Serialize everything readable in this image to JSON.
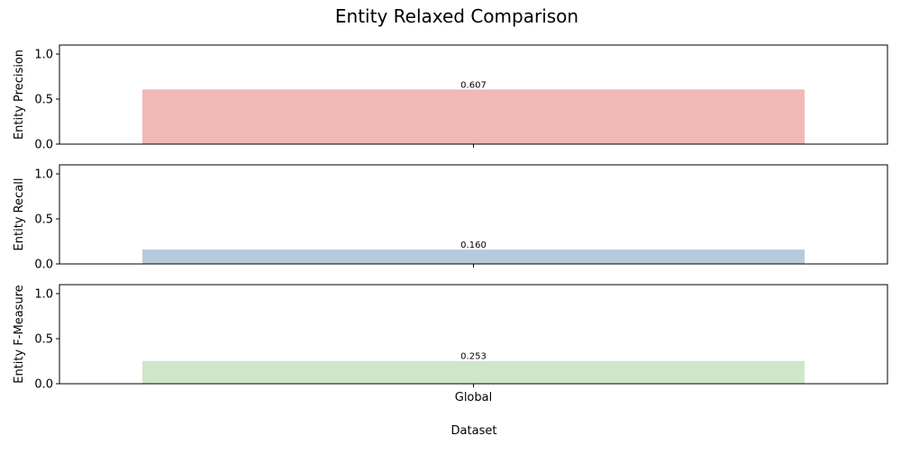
{
  "chart_data": {
    "type": "bar",
    "title": "Entity Relaxed Comparison",
    "xlabel": "Dataset",
    "categories": [
      "Global"
    ],
    "panels": [
      {
        "ylabel": "Entity Precision",
        "values": [
          0.607
        ],
        "value_labels": [
          "0.607"
        ],
        "color": "#f0b9b6",
        "ylim": [
          0,
          1.1
        ],
        "yticks": [
          "0.0",
          "0.5",
          "1.0"
        ]
      },
      {
        "ylabel": "Entity Recall",
        "values": [
          0.16
        ],
        "value_labels": [
          "0.160"
        ],
        "color": "#b7cadd",
        "ylim": [
          0,
          1.1
        ],
        "yticks": [
          "0.0",
          "0.5",
          "1.0"
        ]
      },
      {
        "ylabel": "Entity F-Measure",
        "values": [
          0.253
        ],
        "value_labels": [
          "0.253"
        ],
        "color": "#d0e6c9",
        "ylim": [
          0,
          1.1
        ],
        "yticks": [
          "0.0",
          "0.5",
          "1.0"
        ]
      }
    ],
    "grid": false,
    "legend": "none"
  }
}
